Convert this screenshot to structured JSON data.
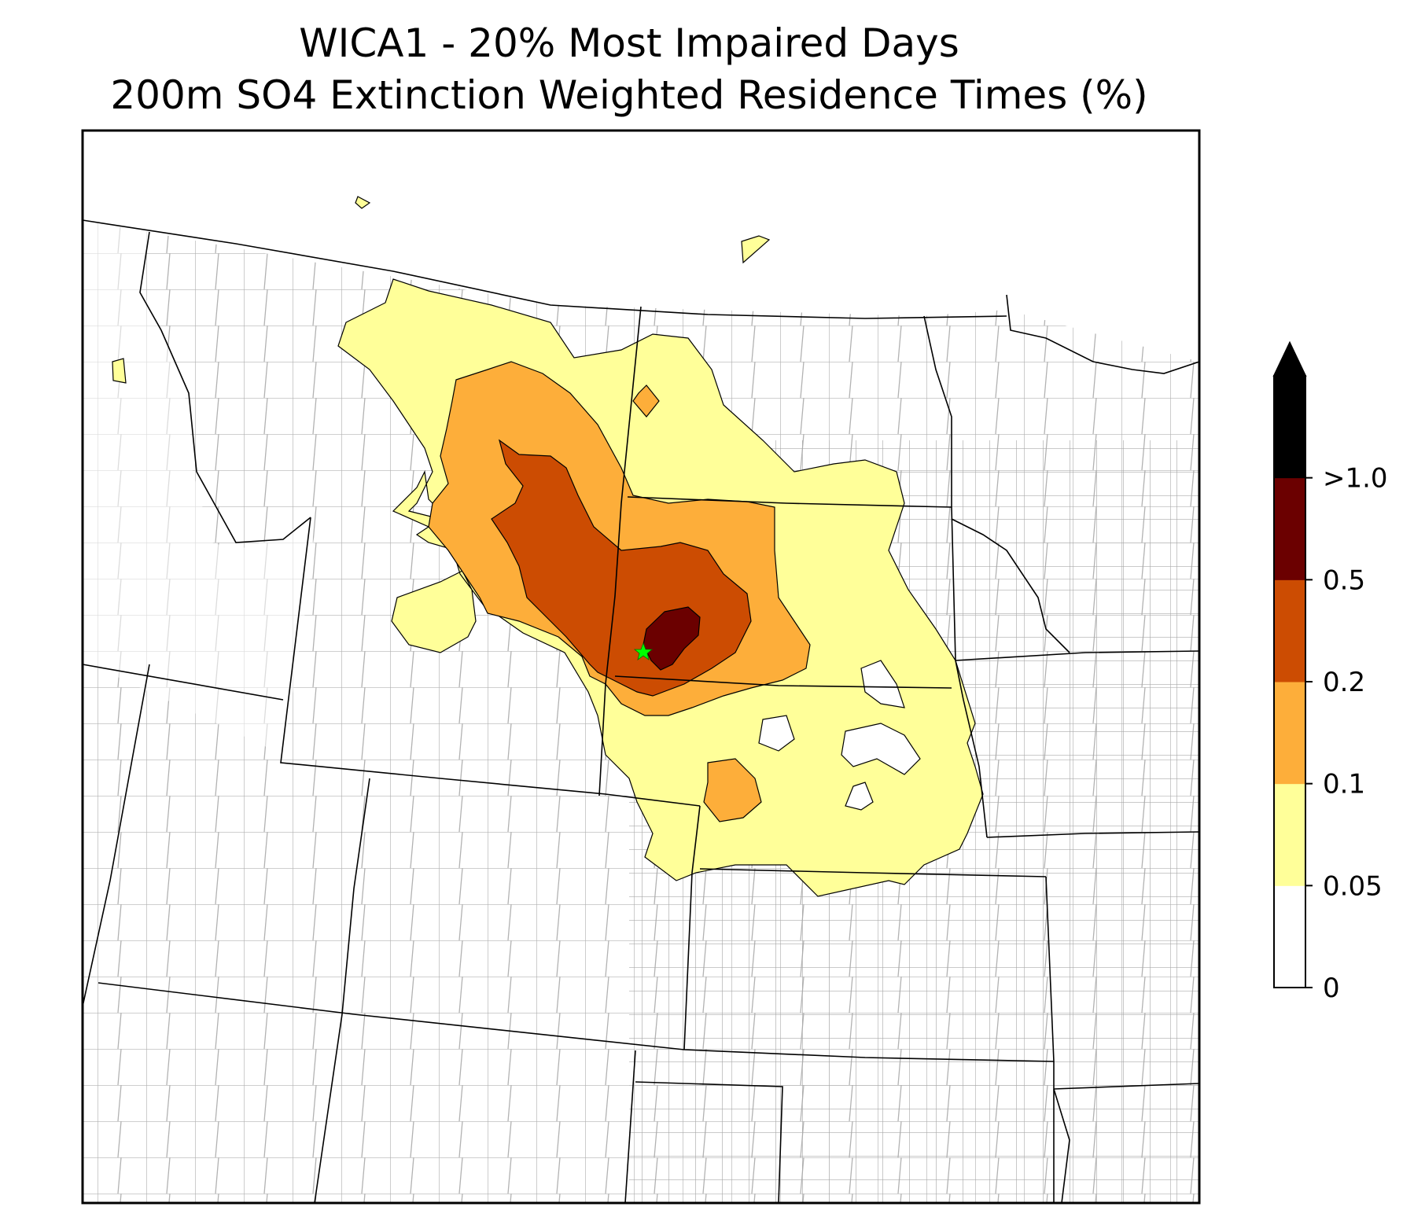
{
  "title": {
    "line1": "WICA1 - 20% Most Impaired Days",
    "line2": "200m SO4 Extinction Weighted Residence Times (%)"
  },
  "colorbar": {
    "levels": [
      {
        "label": "0",
        "color": "#ffffff"
      },
      {
        "label": "0.05",
        "color": "#ffff99"
      },
      {
        "label": "0.1",
        "color": "#fdae3a"
      },
      {
        "label": "0.2",
        "color": "#cc4c02"
      },
      {
        "label": "0.5",
        "color": "#6b0000"
      },
      {
        "label": ">1.0",
        "color": "#000000"
      }
    ]
  },
  "site_marker": {
    "color": "#00ff00",
    "shape": "star"
  },
  "colors": {
    "state_border": "#000000",
    "county_border": "#a9a9a9",
    "frame": "#000000"
  }
}
